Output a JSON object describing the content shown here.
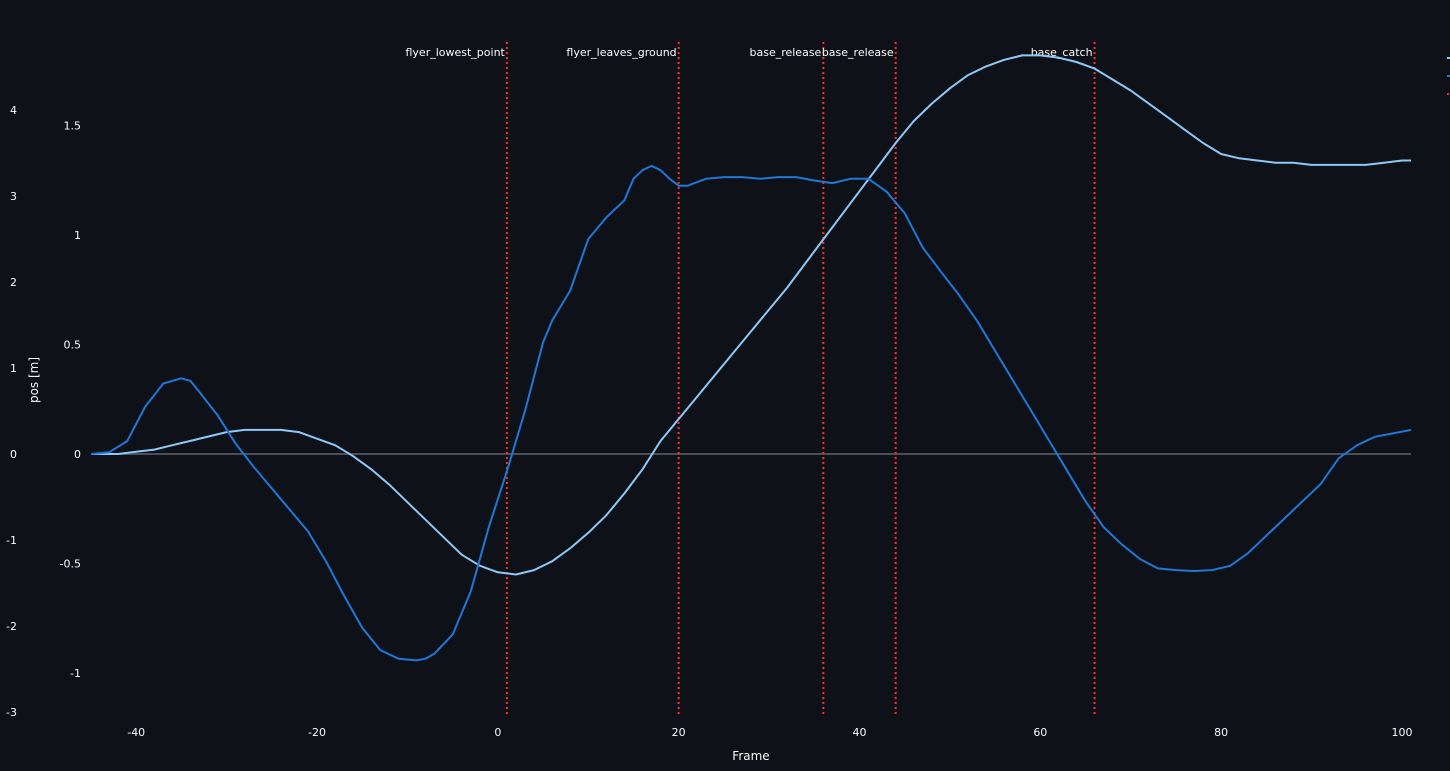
{
  "chart_data": {
    "type": "line",
    "xlabel": "Frame",
    "ylabel": "pos [m]",
    "xlim": [
      -45,
      101
    ],
    "x_ticks": [
      -40,
      -20,
      0,
      20,
      40,
      60,
      80,
      100
    ],
    "y_left_outer": {
      "ylim": [
        -3,
        4.2
      ],
      "ticks": [
        -3,
        -2,
        -1,
        0,
        1,
        2,
        3,
        4
      ]
    },
    "y_left_inner": {
      "ylim": [
        -1.2,
        1.9
      ],
      "ticks": [
        -1,
        -0.5,
        0,
        0.5,
        1,
        1.5
      ]
    },
    "zero_line": true,
    "grid": false,
    "colors": {
      "series_light": "#8ec8f7",
      "series_dark": "#1f77d8",
      "event": "#ff2b2b",
      "zero": "#4a4f58"
    },
    "legend_placement": "top-right",
    "series": [
      {
        "color": "#8ec8f7",
        "axis": "inner",
        "x": [
          -45,
          -42,
          -40,
          -38,
          -36,
          -34,
          -32,
          -30,
          -28,
          -26,
          -24,
          -22,
          -20,
          -18,
          -16,
          -14,
          -12,
          -10,
          -8,
          -6,
          -4,
          -2,
          0,
          2,
          4,
          6,
          8,
          10,
          12,
          14,
          16,
          18,
          20,
          22,
          24,
          26,
          28,
          30,
          32,
          34,
          36,
          38,
          40,
          42,
          44,
          46,
          48,
          50,
          52,
          54,
          56,
          58,
          60,
          62,
          64,
          66,
          68,
          70,
          72,
          74,
          76,
          78,
          80,
          82,
          84,
          86,
          88,
          90,
          92,
          94,
          96,
          98,
          100,
          101
        ],
        "values": [
          0,
          0,
          0.01,
          0.02,
          0.04,
          0.06,
          0.08,
          0.1,
          0.11,
          0.11,
          0.11,
          0.1,
          0.07,
          0.04,
          -0.01,
          -0.07,
          -0.14,
          -0.22,
          -0.3,
          -0.38,
          -0.46,
          -0.51,
          -0.54,
          -0.55,
          -0.53,
          -0.49,
          -0.43,
          -0.36,
          -0.28,
          -0.18,
          -0.07,
          0.06,
          0.16,
          0.26,
          0.36,
          0.46,
          0.56,
          0.66,
          0.76,
          0.87,
          0.98,
          1.09,
          1.2,
          1.31,
          1.42,
          1.52,
          1.6,
          1.67,
          1.73,
          1.77,
          1.8,
          1.82,
          1.82,
          1.81,
          1.79,
          1.76,
          1.71,
          1.66,
          1.6,
          1.54,
          1.48,
          1.42,
          1.37,
          1.35,
          1.34,
          1.33,
          1.33,
          1.32,
          1.32,
          1.32,
          1.32,
          1.33,
          1.34,
          1.34
        ]
      },
      {
        "color": "#1f77d8",
        "axis": "outer",
        "x": [
          -45,
          -43,
          -41,
          -39,
          -37,
          -35,
          -34,
          -33,
          -31,
          -29,
          -27,
          -25,
          -23,
          -21,
          -19,
          -17,
          -15,
          -13,
          -11,
          -9,
          -8,
          -7,
          -5,
          -3,
          -1,
          1,
          3,
          5,
          6,
          8,
          10,
          12,
          14,
          15,
          16,
          17,
          18,
          19,
          20,
          21,
          23,
          25,
          27,
          29,
          31,
          33,
          35,
          37,
          39,
          41,
          43,
          45,
          47,
          49,
          51,
          53,
          55,
          57,
          59,
          61,
          63,
          65,
          67,
          69,
          71,
          73,
          75,
          77,
          79,
          81,
          83,
          85,
          87,
          89,
          91,
          93,
          95,
          97,
          99,
          101
        ],
        "values": [
          0,
          0.02,
          0.15,
          0.55,
          0.82,
          0.88,
          0.85,
          0.72,
          0.45,
          0.12,
          -0.15,
          -0.4,
          -0.65,
          -0.9,
          -1.25,
          -1.65,
          -2.02,
          -2.28,
          -2.38,
          -2.4,
          -2.38,
          -2.32,
          -2.1,
          -1.6,
          -0.85,
          -0.2,
          0.5,
          1.3,
          1.55,
          1.9,
          2.5,
          2.75,
          2.95,
          3.2,
          3.3,
          3.35,
          3.3,
          3.2,
          3.12,
          3.12,
          3.2,
          3.22,
          3.22,
          3.2,
          3.22,
          3.22,
          3.18,
          3.15,
          3.2,
          3.2,
          3.05,
          2.8,
          2.4,
          2.12,
          1.85,
          1.55,
          1.2,
          0.85,
          0.5,
          0.15,
          -0.2,
          -0.55,
          -0.85,
          -1.05,
          -1.22,
          -1.33,
          -1.35,
          -1.36,
          -1.35,
          -1.3,
          -1.15,
          -0.95,
          -0.75,
          -0.55,
          -0.35,
          -0.05,
          0.1,
          0.2,
          0.24,
          0.28
        ]
      }
    ],
    "events": [
      {
        "label": "flyer_lowest_point",
        "x": 1
      },
      {
        "label": "flyer_leaves_ground",
        "x": 20
      },
      {
        "label": "base_release",
        "x": 36
      },
      {
        "label": "base_release",
        "x": 44
      },
      {
        "label": "base_catch",
        "x": 66
      }
    ]
  }
}
